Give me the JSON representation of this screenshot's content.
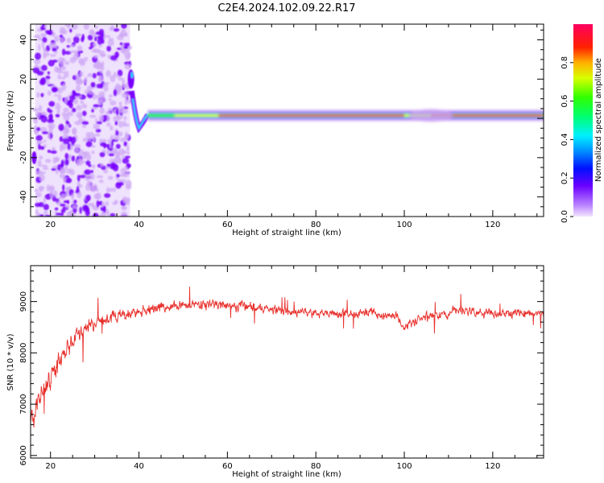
{
  "page": {
    "title": "C2E4.2024.102.09.22.R17"
  },
  "chart_data": [
    {
      "type": "heatmap",
      "xlabel": "Height of straight line (km)",
      "ylabel": "Frequency (Hz)",
      "xlim": [
        15.5,
        131.5
      ],
      "ylim": [
        -50,
        48
      ],
      "xticks": [
        20,
        40,
        60,
        80,
        100,
        120
      ],
      "yticks": [
        -40,
        -20,
        0,
        20,
        40
      ],
      "grid": false,
      "colorbar": {
        "label": "Normalized spectral amplitude",
        "range": [
          0,
          1
        ],
        "ticks": [
          "0.0",
          "0.2",
          "0.4",
          "0.6",
          "0.8"
        ],
        "colormap": "gist_rainbow_r"
      },
      "signal": {
        "noise_region_km": [
          16.5,
          38
        ],
        "main_band_center_hz": 1.5,
        "main_band_from_km": 42,
        "feature_near_38km_hz": 22,
        "feature_near_40km_hz": -5
      },
      "colors": {
        "low": "#cfa8f5",
        "mid_low": "#7a00ff",
        "mid": "#00d8ff",
        "mid_high": "#3cf000",
        "high": "#f00000"
      }
    },
    {
      "type": "line",
      "xlabel": "Height of straight line (km)",
      "ylabel": "SNR (10 * v/v)",
      "xlim": [
        15.5,
        131.5
      ],
      "ylim": [
        5950,
        9700
      ],
      "xticks": [
        20,
        40,
        60,
        80,
        100,
        120
      ],
      "yticks": [
        6000,
        7000,
        8000,
        9000
      ],
      "grid": false,
      "series": [
        {
          "color": "#e8302c",
          "trend_x": [
            15.5,
            17,
            18,
            19,
            20,
            21,
            22,
            23,
            24,
            25,
            26,
            27,
            28,
            29,
            30,
            32,
            34,
            36,
            38,
            40,
            43,
            46,
            50,
            55,
            60,
            65,
            70,
            75,
            80,
            85,
            90,
            93,
            95,
            98,
            100,
            103,
            106,
            110,
            112,
            115,
            120,
            125,
            131.5
          ],
          "trend_y": [
            6600,
            7000,
            7200,
            7350,
            7550,
            7700,
            7850,
            7950,
            8050,
            8200,
            8350,
            8450,
            8500,
            8560,
            8600,
            8650,
            8700,
            8730,
            8760,
            8800,
            8850,
            8900,
            8930,
            8950,
            8920,
            8900,
            8850,
            8800,
            8780,
            8760,
            8750,
            8850,
            8700,
            8750,
            8500,
            8650,
            8700,
            8750,
            8850,
            8800,
            8780,
            8770,
            8760
          ],
          "noise_x": [
            15.5,
            20,
            25,
            30,
            40,
            60,
            90,
            131.5
          ],
          "noise_amp": [
            380,
            350,
            300,
            230,
            190,
            160,
            150,
            150
          ]
        }
      ]
    }
  ]
}
